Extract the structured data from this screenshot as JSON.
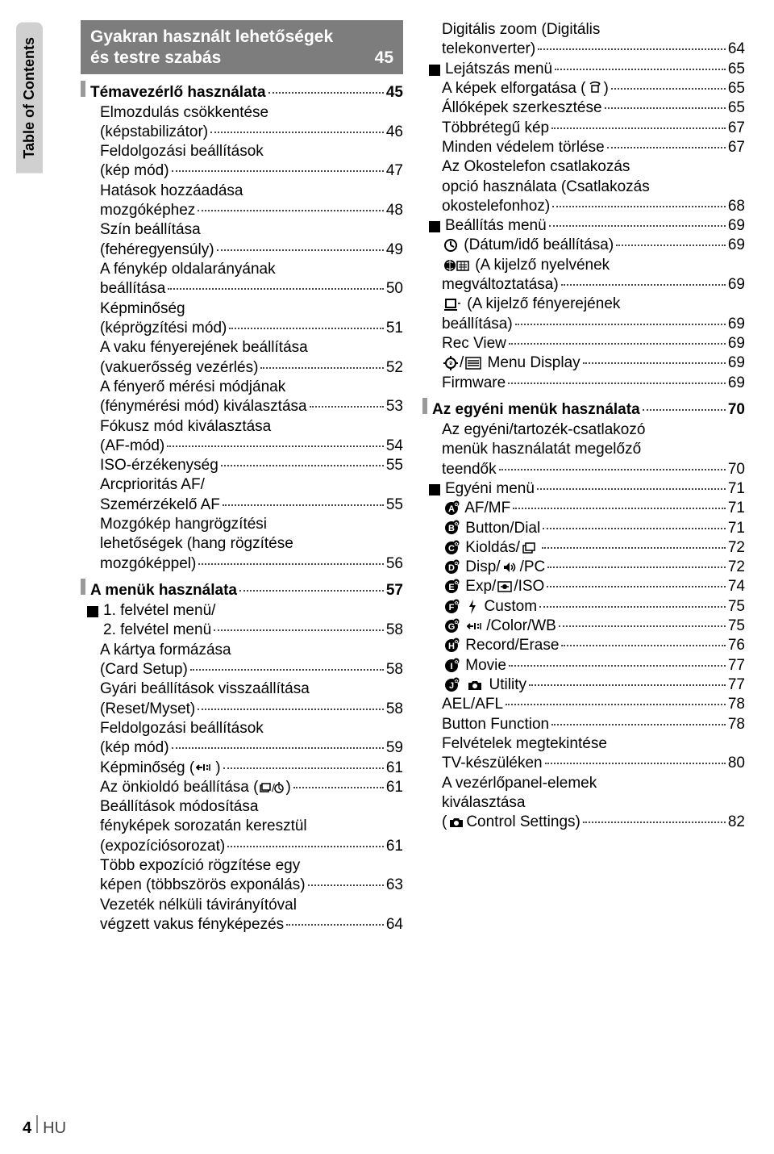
{
  "sidebar": {
    "label": "Table of Contents"
  },
  "footer": {
    "page_number": "4",
    "lang": "HU"
  },
  "box": {
    "line1": "Gyakran használt lehetőségek",
    "line2": "és testre szabás",
    "page": "45"
  },
  "left_sections": [
    {
      "type": "sub",
      "label": "Témavezérlő használata",
      "page": "45"
    },
    {
      "type": "entry",
      "label": "Elmozdulás csökkentése\n(képstabilizátor)",
      "page": "46"
    },
    {
      "type": "entry",
      "label": "Feldolgozási beállítások\n(kép mód)",
      "page": "47"
    },
    {
      "type": "entry",
      "label": "Hatások hozzáadása\nmozgóképhez",
      "page": "48"
    },
    {
      "type": "entry",
      "label": "Szín beállítása\n(fehéregyensúly)",
      "page": "49"
    },
    {
      "type": "entry",
      "label": "A fénykép oldalarányának\nbeállítása",
      "page": "50"
    },
    {
      "type": "entry",
      "label": "Képminőség\n(képrögzítési mód)",
      "page": "51"
    },
    {
      "type": "entry",
      "label": "A vaku fényerejének beállítása\n(vakuerősség vezérlés)",
      "page": "52"
    },
    {
      "type": "entry",
      "label": "A fényerő mérési módjának\n(fénymérési mód) kiválasztása",
      "page": "53"
    },
    {
      "type": "entry",
      "label": "Fókusz mód kiválasztása\n(AF-mód)",
      "page": "54"
    },
    {
      "type": "entry",
      "label": "ISO-érzékenység",
      "page": "55"
    },
    {
      "type": "entry",
      "label": "Arcprioritás AF/\nSzemérzékelő AF",
      "page": "55"
    },
    {
      "type": "entry",
      "label": "Mozgókép hangrögzítési\nlehetőségek (hang rögzítése\nmozgóképpel)",
      "page": "56"
    },
    {
      "type": "sub",
      "label": "A menük használata",
      "page": "57"
    },
    {
      "type": "entry",
      "bulleted": true,
      "label": "1. felvétel menü/\n2. felvétel menü",
      "page": "58"
    },
    {
      "type": "entry",
      "label": "A kártya formázása\n(Card Setup)",
      "page": "58"
    },
    {
      "type": "entry",
      "label": "Gyári beállítások visszaállítása\n(Reset/Myset)",
      "page": "58"
    },
    {
      "type": "entry",
      "label": "Feldolgozási beállítások\n(kép mód)",
      "page": "59"
    },
    {
      "type": "entry",
      "label": "Képminőség (",
      "icon_after": "arrow-left-lines",
      "label2": ")",
      "page": "61"
    },
    {
      "type": "entry",
      "label": "Az önkioldó beállítása (",
      "icon_after": "burst-timer",
      "label2": ")",
      "page": "61"
    },
    {
      "type": "entry",
      "label": "Beállítások módosítása\nfényképek sorozatán keresztül\n(expozíciósorozat)",
      "page": "61"
    },
    {
      "type": "entry",
      "label": "Több expozíció rögzítése egy\nképen (többszörös exponálás)",
      "page": "63"
    },
    {
      "type": "entry",
      "label": "Vezeték nélküli távirányítóval\nvégzett vakus fényképezés",
      "page": "64"
    }
  ],
  "right_sections": [
    {
      "type": "entry",
      "label": "Digitális zoom (Digitális\ntelekonverter)",
      "page": "64"
    },
    {
      "type": "entry",
      "bulleted": true,
      "label": "Lejátszás menü",
      "page": "65"
    },
    {
      "type": "entry",
      "label": "A képek elforgatása (",
      "icon_after": "rotate-icon",
      "label2": ")",
      "page": "65"
    },
    {
      "type": "entry",
      "label": "Állóképek szerkesztése",
      "page": "65"
    },
    {
      "type": "entry",
      "label": "Többrétegű kép",
      "page": "67"
    },
    {
      "type": "entry",
      "label": "Minden védelem törlése",
      "page": "67"
    },
    {
      "type": "entry",
      "label": "Az Okostelefon csatlakozás\nopció használata (Csatlakozás\nokostelefonhoz)",
      "page": "68"
    },
    {
      "type": "entry",
      "bulleted": true,
      "label": "Beállítás menü",
      "page": "69"
    },
    {
      "type": "entry",
      "icon_before": "clock-icon",
      "label": " (Dátum/idő beállítása)",
      "page": "69"
    },
    {
      "type": "entry",
      "icon_before": "globe-keyboard-icon",
      "label": " (A kijelző nyelvének\nmegváltoztatása)",
      "page": "69"
    },
    {
      "type": "entry",
      "icon_before": "brightness-icon",
      "label": " (A kijelző fényerejének\nbeállítása)",
      "page": "69"
    },
    {
      "type": "entry",
      "label": "Rec View",
      "page": "69"
    },
    {
      "type": "entry",
      "icon_before": "gear-menu-icon",
      "label": "/",
      "icon_mid": "menu-icon",
      "label2": " Menu Display",
      "page": "69"
    },
    {
      "type": "entry",
      "label": "Firmware",
      "page": "69"
    },
    {
      "type": "sub",
      "label": "Az egyéni menük használata",
      "page": "70"
    },
    {
      "type": "entry",
      "label": "Az egyéni/tartozék-csatlakozó\nmenük használatát megelőző\nteendők",
      "page": "70"
    },
    {
      "type": "entry",
      "bulleted": true,
      "label": "Egyéni menü",
      "page": "71"
    },
    {
      "type": "entry",
      "icon_before": "gear-a",
      "label": " AF/MF",
      "page": "71"
    },
    {
      "type": "entry",
      "icon_before": "gear-b",
      "label": " Button/Dial",
      "page": "71"
    },
    {
      "type": "entry",
      "icon_before": "gear-c",
      "label": " Kioldás/",
      "icon_mid": "burst-icon",
      "page": "72"
    },
    {
      "type": "entry",
      "icon_before": "gear-d",
      "label": " Disp/",
      "icon_mid": "speaker-icon",
      "label2": "/PC",
      "page": "72"
    },
    {
      "type": "entry",
      "icon_before": "gear-e",
      "label": " Exp/",
      "icon_mid": "meter-icon",
      "label2": "/ISO",
      "page": "74"
    },
    {
      "type": "entry",
      "icon_before": "gear-f",
      "label": " ",
      "icon_mid": "flash-icon",
      "label2": " Custom",
      "page": "75"
    },
    {
      "type": "entry",
      "icon_before": "gear-g",
      "label": " ",
      "icon_mid": "arrow-lines-icon",
      "label2": "/Color/WB",
      "page": "75"
    },
    {
      "type": "entry",
      "icon_before": "gear-h",
      "label": " Record/Erase",
      "page": "76"
    },
    {
      "type": "entry",
      "icon_before": "gear-i",
      "label": " Movie",
      "page": "77"
    },
    {
      "type": "entry",
      "icon_before": "gear-j",
      "label": " ",
      "icon_mid": "camera-icon",
      "label2": " Utility",
      "page": "77"
    },
    {
      "type": "entry",
      "label": "AEL/AFL",
      "page": "78"
    },
    {
      "type": "entry",
      "label": "Button Function",
      "page": "78"
    },
    {
      "type": "entry",
      "label": "Felvételek megtekintése\nTV-készüléken",
      "page": "80"
    },
    {
      "type": "entry",
      "label": "A vezérlőpanel-elemek\nkiválasztása\n(",
      "icon_mid": "camera-icon",
      "label2": "Control Settings)",
      "page": "82"
    }
  ]
}
